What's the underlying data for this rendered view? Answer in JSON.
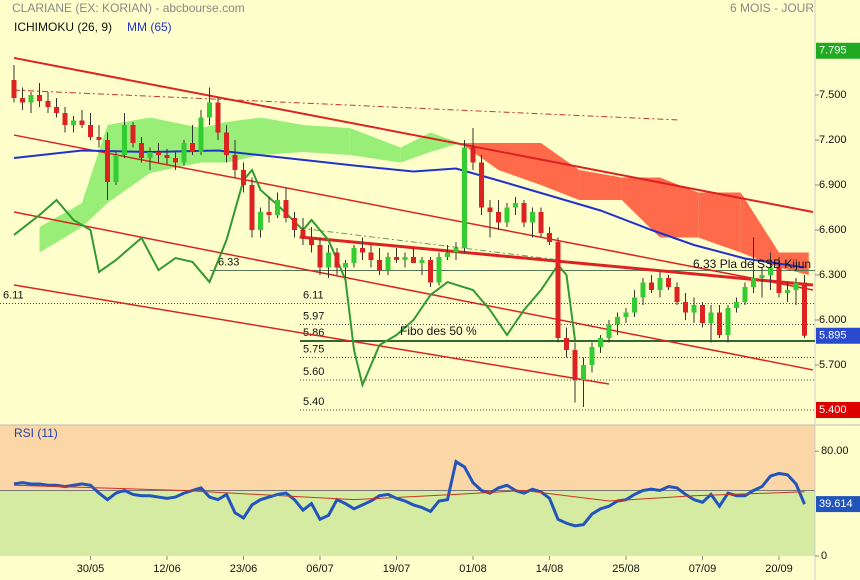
{
  "chart_data": [
    {
      "type": "candlestick",
      "title": "CLARIANE (EX: KORIAN) - abcbourse.com",
      "period": "6 MOIS - JOUR",
      "indicator_label": "ICHIMOKU (26, 9)",
      "categories": [
        null,
        null,
        null,
        null,
        null,
        null,
        null,
        null,
        null,
        "30/05",
        null,
        null,
        null,
        null,
        null,
        null,
        null,
        null,
        "12/06",
        null,
        null,
        null,
        null,
        null,
        null,
        null,
        null,
        "23/06",
        null,
        null,
        null,
        null,
        null,
        null,
        null,
        null,
        "06/07",
        null,
        null,
        null,
        null,
        null,
        null,
        null,
        null,
        "19/07",
        null,
        null,
        null,
        null,
        null,
        null,
        null,
        null,
        "01/08",
        null,
        null,
        null,
        null,
        null,
        null,
        null,
        null,
        "14/08",
        null,
        null,
        null,
        null,
        null,
        null,
        null,
        null,
        "25/08",
        null,
        null,
        null,
        null,
        null,
        null,
        null,
        null,
        "07/09",
        null,
        null,
        null,
        null,
        null,
        null,
        null,
        null,
        "20/09",
        null,
        null,
        null
      ],
      "open": [
        7.6,
        7.48,
        7.45,
        7.5,
        7.46,
        7.42,
        7.38,
        7.3,
        7.33,
        7.3,
        7.22,
        7.2,
        6.92,
        7.1,
        7.3,
        7.18,
        7.08,
        7.12,
        7.1,
        7.08,
        7.05,
        7.18,
        7.12,
        7.35,
        7.45,
        7.25,
        7.1,
        7.0,
        6.9,
        6.6,
        6.72,
        6.7,
        6.8,
        6.68,
        6.6,
        6.55,
        6.5,
        6.35,
        6.45,
        6.35,
        6.38,
        6.48,
        6.45,
        6.4,
        6.33,
        6.42,
        6.4,
        6.42,
        6.38,
        6.4,
        6.25,
        6.42,
        6.45,
        6.48,
        7.15,
        7.05,
        6.75,
        6.72,
        6.65,
        6.75,
        6.78,
        6.65,
        6.72,
        6.58,
        6.52,
        5.88,
        5.8,
        5.6,
        5.7,
        5.82,
        5.88,
        5.97,
        6.02,
        6.05,
        6.15,
        6.25,
        6.2,
        6.28,
        6.22,
        6.12,
        6.05,
        6.1,
        5.98,
        6.05,
        5.9,
        6.08,
        6.12,
        6.22,
        6.28,
        6.3,
        6.35,
        6.18,
        6.2,
        6.25
      ],
      "high": [
        7.7,
        7.55,
        7.52,
        7.58,
        7.52,
        7.48,
        7.42,
        7.36,
        7.4,
        7.38,
        7.3,
        7.25,
        7.12,
        7.38,
        7.32,
        7.22,
        7.15,
        7.18,
        7.14,
        7.12,
        7.2,
        7.3,
        7.4,
        7.55,
        7.48,
        7.3,
        7.2,
        7.05,
        6.95,
        6.75,
        6.82,
        6.85,
        6.88,
        6.72,
        6.68,
        6.62,
        6.55,
        6.5,
        6.48,
        6.4,
        6.5,
        6.55,
        6.5,
        6.48,
        6.45,
        6.48,
        6.45,
        6.48,
        6.42,
        6.42,
        6.45,
        6.5,
        6.52,
        7.2,
        7.28,
        7.1,
        6.8,
        6.8,
        6.78,
        6.82,
        6.8,
        6.75,
        6.75,
        6.62,
        6.55,
        5.95,
        5.85,
        5.75,
        5.85,
        5.9,
        6.0,
        6.05,
        6.08,
        6.2,
        6.28,
        6.3,
        6.32,
        6.3,
        6.25,
        6.18,
        6.15,
        6.12,
        6.1,
        6.1,
        6.1,
        6.15,
        6.25,
        6.55,
        6.35,
        6.45,
        6.42,
        6.25,
        6.28,
        6.3
      ],
      "low": [
        7.45,
        7.4,
        7.38,
        7.42,
        7.38,
        7.35,
        7.25,
        7.25,
        7.28,
        7.2,
        7.15,
        6.8,
        6.9,
        7.08,
        7.15,
        7.05,
        7.0,
        7.05,
        7.04,
        7.0,
        7.03,
        7.1,
        7.1,
        7.3,
        7.2,
        7.05,
        6.95,
        6.85,
        6.55,
        6.55,
        6.65,
        6.68,
        6.65,
        6.55,
        6.5,
        6.45,
        6.3,
        6.28,
        6.3,
        6.28,
        6.35,
        6.4,
        6.35,
        6.3,
        6.3,
        6.38,
        6.35,
        6.38,
        6.3,
        6.22,
        6.23,
        6.4,
        6.4,
        6.45,
        7.0,
        6.7,
        6.55,
        6.6,
        6.62,
        6.7,
        6.62,
        6.55,
        6.55,
        6.5,
        5.85,
        5.75,
        5.45,
        5.42,
        5.65,
        5.78,
        5.85,
        5.9,
        5.98,
        6.02,
        6.1,
        6.18,
        6.15,
        6.2,
        6.1,
        6.0,
        5.98,
        5.95,
        5.85,
        5.88,
        5.85,
        6.05,
        6.1,
        6.18,
        6.15,
        6.2,
        6.15,
        6.12,
        6.1,
        5.88
      ],
      "close": [
        7.48,
        7.45,
        7.5,
        7.46,
        7.42,
        7.38,
        7.3,
        7.33,
        7.3,
        7.22,
        7.2,
        6.92,
        7.1,
        7.3,
        7.18,
        7.08,
        7.12,
        7.1,
        7.08,
        7.05,
        7.18,
        7.12,
        7.35,
        7.45,
        7.25,
        7.1,
        7.0,
        6.9,
        6.6,
        6.72,
        6.7,
        6.8,
        6.68,
        6.6,
        6.55,
        6.5,
        6.35,
        6.45,
        6.35,
        6.38,
        6.48,
        6.45,
        6.4,
        6.33,
        6.42,
        6.4,
        6.42,
        6.38,
        6.4,
        6.25,
        6.42,
        6.45,
        6.48,
        7.15,
        7.05,
        6.75,
        6.72,
        6.65,
        6.75,
        6.78,
        6.65,
        6.72,
        6.58,
        6.52,
        5.88,
        5.8,
        5.6,
        5.7,
        5.82,
        5.88,
        5.97,
        6.02,
        6.05,
        6.15,
        6.25,
        6.2,
        6.28,
        6.22,
        6.12,
        6.05,
        6.1,
        5.98,
        6.05,
        5.9,
        6.08,
        6.12,
        6.22,
        6.28,
        6.3,
        6.35,
        6.18,
        6.2,
        6.25,
        5.895
      ],
      "up_color": "#33cc33",
      "down_color": "#dd2222",
      "last_close_color": "#2a4bd0",
      "ma": {
        "name": "MM (65)",
        "color": "#2233cc",
        "x": [
          0,
          8,
          16,
          24,
          32,
          40,
          47,
          52,
          57,
          63,
          69,
          75,
          80,
          86,
          93
        ],
        "values": [
          7.08,
          7.13,
          7.12,
          7.13,
          7.08,
          7.03,
          6.99,
          7.01,
          6.93,
          6.83,
          6.73,
          6.6,
          6.5,
          6.41,
          6.35
        ]
      },
      "cloud": {
        "x": [
          3,
          8,
          11,
          16,
          22,
          25,
          29,
          34,
          39.5,
          45.5,
          49,
          52.5,
          57,
          62,
          66.5,
          71.5,
          76,
          80.5,
          85.5,
          90,
          93.5
        ],
        "span_a": [
          6.62,
          6.78,
          7.3,
          7.35,
          7.28,
          7.32,
          7.35,
          7.3,
          7.28,
          7.15,
          7.25,
          7.18,
          7.0,
          6.9,
          6.8,
          6.8,
          6.55,
          6.55,
          6.45,
          6.35,
          6.3
        ],
        "span_b": [
          6.45,
          6.62,
          6.78,
          6.98,
          7.05,
          7.05,
          7.1,
          7.12,
          7.1,
          7.05,
          7.12,
          7.18,
          7.18,
          7.18,
          7.0,
          6.95,
          6.95,
          6.85,
          6.85,
          6.45,
          6.45
        ],
        "up_color": "#99ee77",
        "down_color": "#ff6a4a"
      },
      "chikou": {
        "color": "#339933",
        "x": [
          0,
          3,
          5,
          7,
          9,
          10,
          12,
          15,
          17,
          19,
          21,
          23,
          25,
          27,
          28,
          29,
          31,
          34,
          35,
          37,
          39,
          40,
          41,
          43,
          45,
          47,
          49,
          51,
          54,
          56,
          58,
          60,
          62,
          64,
          65,
          66
        ],
        "values": [
          6.567,
          6.7,
          6.8,
          6.667,
          6.6,
          6.32,
          6.4,
          6.547,
          6.333,
          6.413,
          6.387,
          6.253,
          6.533,
          6.933,
          7.0,
          6.867,
          6.767,
          6.6,
          6.667,
          6.533,
          6.267,
          5.8,
          5.567,
          5.833,
          5.9,
          6.0,
          6.167,
          6.253,
          6.2,
          6.067,
          5.9,
          6.067,
          6.2,
          6.367,
          6.3,
          5.867
        ]
      },
      "trendlines": [
        {
          "x": [
            0,
            94
          ],
          "values": [
            7.747,
            6.72
          ],
          "color": "#dd2222",
          "width": 2
        },
        {
          "x": [
            0,
            94
          ],
          "values": [
            7.233,
            6.2
          ],
          "color": "#dd2222",
          "width": 1.5
        },
        {
          "x": [
            0,
            94
          ],
          "values": [
            6.72,
            5.667
          ],
          "color": "#dd2222",
          "width": 1.5
        },
        {
          "x": [
            0,
            70
          ],
          "values": [
            6.233,
            5.573
          ],
          "color": "#dd2222",
          "width": 1.5
        },
        {
          "x": [
            33.6,
            94
          ],
          "values": [
            6.553,
            6.233
          ],
          "color": "#dd2222",
          "width": 3
        },
        {
          "x": [
            0,
            78.4
          ],
          "values": [
            7.533,
            7.333
          ],
          "color": "#cc3333",
          "width": 1,
          "dash": "6 3 2 3"
        },
        {
          "x": [
            33.6,
            64.2
          ],
          "values": [
            6.613,
            6.4
          ],
          "color": "#669966",
          "width": 1,
          "dash": "6 3 2 3"
        }
      ],
      "levels": [
        {
          "value": 6.33,
          "label": "6.33",
          "style": "solid"
        },
        {
          "value": 6.11,
          "label": "6.11",
          "style": "dotted"
        },
        {
          "value": 5.97,
          "label": "5.97",
          "style": "dotted"
        },
        {
          "value": 5.86,
          "label": "5.86",
          "style": "thick"
        },
        {
          "value": 5.75,
          "label": "5.75",
          "style": "dotted"
        },
        {
          "value": 5.6,
          "label": "5.60",
          "style": "dotted"
        },
        {
          "value": 5.4,
          "label": "5.40",
          "style": "dotted"
        }
      ],
      "annotations": [
        "Fibo des 50 %",
        "6.33  Pla de SSB Kijun"
      ],
      "price_tags": [
        {
          "value": 7.795,
          "label": "7.795",
          "color": "#22aa22"
        },
        {
          "value": 5.4,
          "label": "5.400",
          "color": "#dd0000"
        }
      ],
      "ylim": [
        5.3,
        7.85
      ],
      "yticks": [
        {
          "value": 5.7,
          "label": "5.700"
        },
        {
          "value": 6.0,
          "label": "6.000"
        },
        {
          "value": 6.3,
          "label": "6.300"
        },
        {
          "value": 6.6,
          "label": "6.600"
        },
        {
          "value": 6.9,
          "label": "6.900"
        },
        {
          "value": 7.2,
          "label": "7.200"
        },
        {
          "value": 7.5,
          "label": "7.500"
        }
      ]
    },
    {
      "type": "line",
      "title": "RSI (11)",
      "color": "#2255bb",
      "values": [
        55,
        56,
        55,
        55,
        54,
        54,
        53,
        54,
        55,
        54,
        48,
        43,
        48,
        50,
        47,
        46,
        46,
        45,
        44,
        45,
        48,
        50,
        52,
        45,
        43,
        47,
        33,
        29,
        39,
        43,
        45,
        47,
        48,
        43,
        35,
        40,
        28,
        31,
        43,
        40,
        36,
        39,
        42,
        46,
        47,
        44,
        42,
        39,
        37,
        34,
        42,
        43,
        72,
        68,
        56,
        50,
        48,
        52,
        54,
        50,
        48,
        51,
        49,
        44,
        28,
        25,
        23,
        24,
        32,
        36,
        38,
        42,
        43,
        47,
        50,
        51,
        50,
        53,
        52,
        47,
        43,
        41,
        47,
        38,
        48,
        46,
        46,
        50,
        53,
        61,
        63,
        62,
        55,
        39.614
      ],
      "signal": {
        "color": "#cc3322",
        "x": [
          0,
          20,
          40,
          52,
          60,
          70,
          80,
          93
        ],
        "values": [
          54,
          50,
          43,
          47,
          50,
          42,
          46,
          49
        ]
      },
      "midline": 50,
      "upper_color": "#fbd6a6",
      "lower_color": "#d6eba2",
      "ylim": [
        0,
        100
      ],
      "yticks": [
        0,
        {
          "value": 80,
          "label": "80.00"
        }
      ]
    }
  ]
}
